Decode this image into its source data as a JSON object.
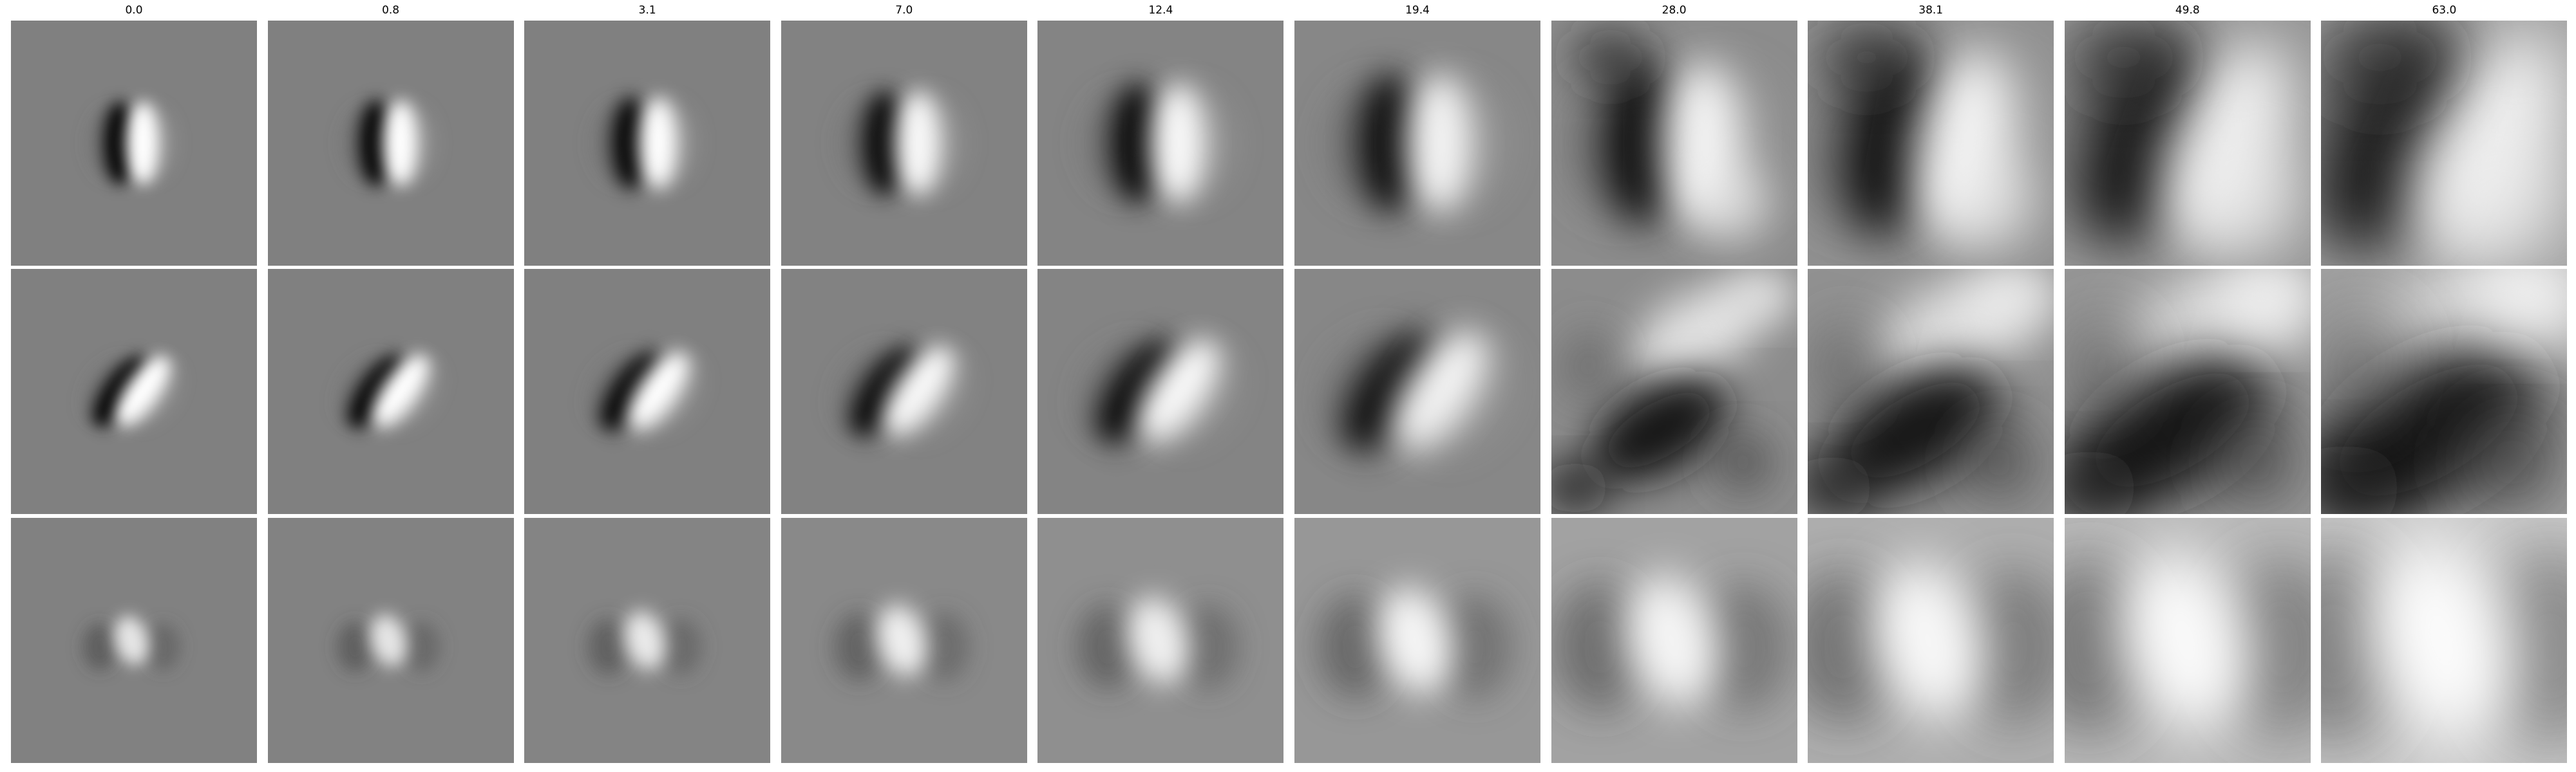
{
  "figure": {
    "columns": [
      {
        "label": "0.0",
        "s": 0.16,
        "c": 1.0,
        "bg": 128,
        "rows": [
          {
            "kind": "dipole",
            "tilt": 0
          },
          {
            "kind": "dipole",
            "tilt": 35
          },
          {
            "kind": "spot",
            "bright": 230
          }
        ]
      },
      {
        "label": "0.8",
        "s": 0.18,
        "c": 1.0,
        "bg": 128,
        "rows": [
          {
            "kind": "dipole",
            "tilt": 0
          },
          {
            "kind": "dipole",
            "tilt": 35
          },
          {
            "kind": "spot",
            "bright": 230
          }
        ]
      },
      {
        "label": "3.1",
        "s": 0.22,
        "c": 1.0,
        "bg": 128,
        "rows": [
          {
            "kind": "dipole",
            "tilt": 0
          },
          {
            "kind": "dipole",
            "tilt": 35
          },
          {
            "kind": "spot",
            "bright": 235
          }
        ]
      },
      {
        "label": "7.0",
        "s": 0.3,
        "c": 0.95,
        "bg": 130,
        "rows": [
          {
            "kind": "dipole",
            "tilt": 0
          },
          {
            "kind": "dipole",
            "tilt": 35
          },
          {
            "kind": "spot",
            "bright": 240
          }
        ]
      },
      {
        "label": "12.4",
        "s": 0.4,
        "c": 0.95,
        "bg": 132,
        "rows": [
          {
            "kind": "dipole",
            "tilt": 0
          },
          {
            "kind": "dipole",
            "tilt": 35
          },
          {
            "kind": "spot",
            "bright": 240
          }
        ]
      },
      {
        "label": "19.4",
        "s": 0.52,
        "c": 0.9,
        "bg": 135,
        "rows": [
          {
            "kind": "dipole",
            "tilt": 0
          },
          {
            "kind": "dipole",
            "tilt": 35
          },
          {
            "kind": "spot",
            "bright": 245
          }
        ]
      },
      {
        "label": "28.0",
        "s": 0.68,
        "c": 0.9,
        "bg": 140,
        "rows": [
          {
            "kind": "dipole",
            "tilt": 0
          },
          {
            "kind": "texture",
            "tilt": 30
          },
          {
            "kind": "spot",
            "bright": 245
          }
        ]
      },
      {
        "label": "38.1",
        "s": 0.85,
        "c": 0.9,
        "bg": 145,
        "rows": [
          {
            "kind": "dipole",
            "tilt": 10
          },
          {
            "kind": "texture",
            "tilt": 30
          },
          {
            "kind": "spot",
            "bright": 248
          }
        ]
      },
      {
        "label": "49.8",
        "s": 1.0,
        "c": 0.85,
        "bg": 150,
        "rows": [
          {
            "kind": "dipole",
            "tilt": 20
          },
          {
            "kind": "texture",
            "tilt": 30
          },
          {
            "kind": "spot",
            "bright": 250
          }
        ]
      },
      {
        "label": "63.0",
        "s": 1.15,
        "c": 0.85,
        "bg": 160,
        "rows": [
          {
            "kind": "dipole",
            "tilt": 25
          },
          {
            "kind": "texture",
            "tilt": 30
          },
          {
            "kind": "spot",
            "bright": 252
          }
        ]
      }
    ]
  }
}
